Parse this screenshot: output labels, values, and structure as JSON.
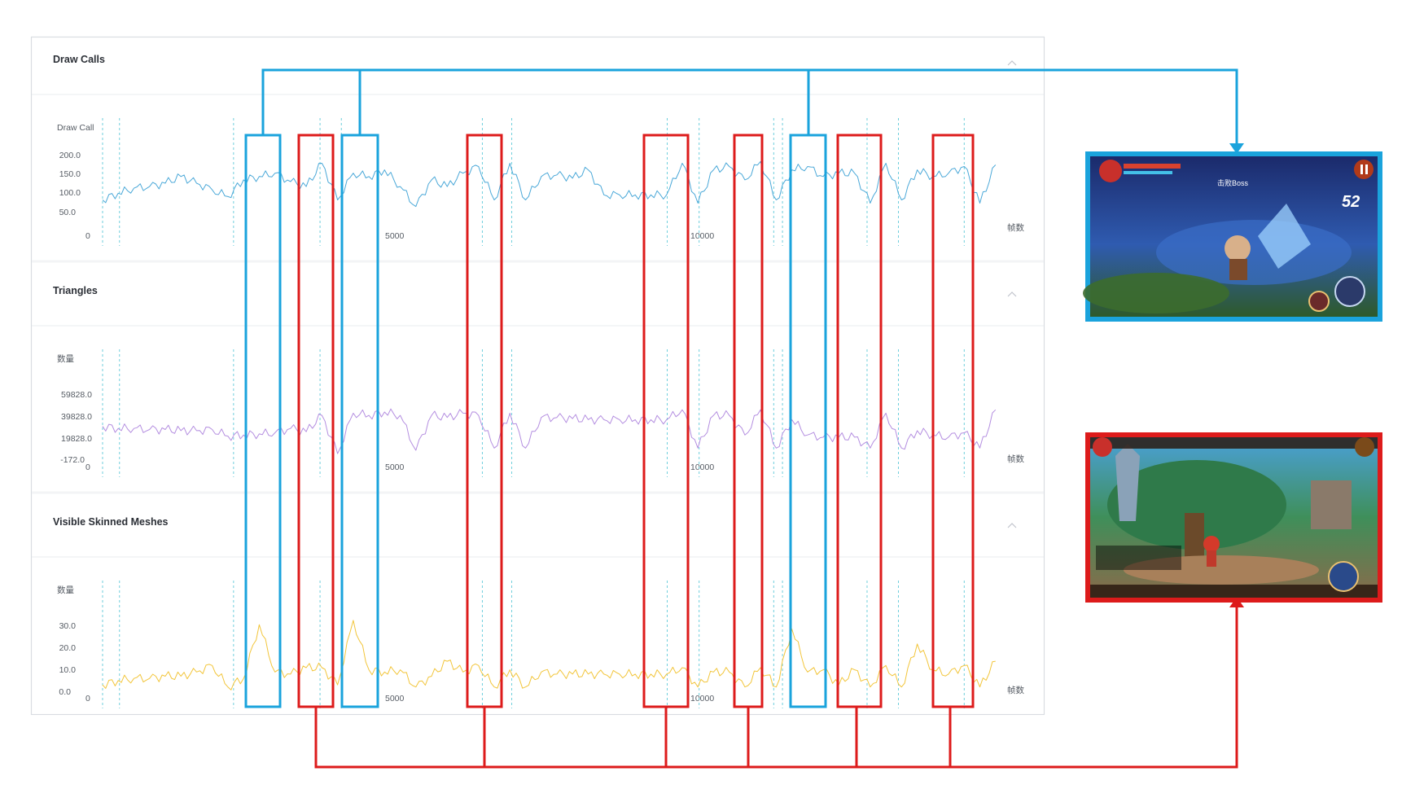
{
  "panels": [
    {
      "title": "Draw Calls",
      "y_axis_label": "Draw Call",
      "y_ticks": [
        "200.0",
        "150.0",
        "100.0",
        "50.0"
      ],
      "x_ticks": [
        "0",
        "5000",
        "10000"
      ],
      "x_unit": "帧数"
    },
    {
      "title": "Triangles",
      "y_axis_label": "数量",
      "y_ticks": [
        "59828.0",
        "39828.0",
        "19828.0",
        "-172.0"
      ],
      "x_ticks": [
        "0",
        "5000",
        "10000"
      ],
      "x_unit": "帧数"
    },
    {
      "title": "Visible Skinned Meshes",
      "y_axis_label": "数量",
      "y_ticks": [
        "30.0",
        "20.0",
        "10.0",
        "0.0"
      ],
      "x_ticks": [
        "0",
        "5000",
        "10000"
      ],
      "x_unit": "帧数"
    }
  ],
  "colors": {
    "draw_calls": "#4aa8d8",
    "triangles": "#b48ee0",
    "skinned": "#f2c53a",
    "marker": "#5fc9d8",
    "blue_highlight": "#1aa3dc",
    "red_highlight": "#dd1b1b"
  },
  "chart_data": [
    {
      "type": "line",
      "title": "Draw Calls",
      "ylabel": "Draw Call",
      "xlabel": "帧数",
      "xlim": [
        0,
        14500
      ],
      "ylim": [
        0,
        220
      ],
      "x": [
        0,
        250,
        500,
        750,
        1000,
        1250,
        1500,
        1750,
        2000,
        2250,
        2500,
        2750,
        3000,
        3250,
        3500,
        3750,
        4000,
        4250,
        4500,
        4750,
        5000,
        5250,
        5500,
        5750,
        6000,
        6250,
        6500,
        6750,
        7000,
        7250,
        7500,
        7750,
        8000,
        8250,
        8500,
        8750,
        9000,
        9250,
        9500,
        9750,
        10000,
        10250,
        10500,
        10750,
        11000,
        11250,
        11500,
        11750,
        12000,
        12250,
        12500,
        12750,
        13000,
        13250,
        13500,
        13750,
        14000,
        14250
      ],
      "series": [
        {
          "values": [
            60,
            80,
            95,
            100,
            110,
            130,
            110,
            90,
            70,
            120,
            130,
            140,
            115,
            100,
            170,
            60,
            140,
            130,
            150,
            100,
            40,
            120,
            100,
            140,
            160,
            60,
            170,
            60,
            130,
            135,
            125,
            150,
            75,
            75,
            75,
            75,
            75,
            170,
            50,
            150,
            160,
            120,
            175,
            60,
            150,
            160,
            130,
            140,
            140,
            50,
            170,
            60,
            150,
            130,
            140,
            160,
            50,
            165
          ]
        }
      ],
      "marker_frames": [
        0,
        270,
        2090,
        3470,
        3810,
        6060,
        6530,
        9010,
        9520,
        10710,
        10850,
        12200,
        12700,
        13750
      ]
    },
    {
      "type": "line",
      "title": "Triangles",
      "ylabel": "数量",
      "xlabel": "帧数",
      "xlim": [
        0,
        14500
      ],
      "ylim": [
        -172,
        69828
      ],
      "x": [
        0,
        250,
        500,
        750,
        1000,
        1250,
        1500,
        1750,
        2000,
        2250,
        2500,
        2750,
        3000,
        3250,
        3500,
        3750,
        4000,
        4250,
        4500,
        4750,
        5000,
        5250,
        5500,
        5750,
        6000,
        6250,
        6500,
        6750,
        7000,
        7250,
        7500,
        7750,
        8000,
        8250,
        8500,
        8750,
        9000,
        9250,
        9500,
        9750,
        10000,
        10250,
        10500,
        10750,
        11000,
        11250,
        11500,
        11750,
        12000,
        12250,
        12500,
        12750,
        13000,
        13250,
        13500,
        13750,
        14000,
        14250
      ],
      "series": [
        {
          "values": [
            30000,
            28000,
            28000,
            27000,
            27000,
            26000,
            26000,
            27000,
            21000,
            22000,
            23000,
            24000,
            28000,
            25000,
            40000,
            5000,
            42000,
            40000,
            43000,
            40000,
            8000,
            40000,
            38000,
            42000,
            40000,
            10000,
            42000,
            10000,
            38000,
            38000,
            37000,
            36000,
            36000,
            36000,
            36000,
            36000,
            36000,
            45000,
            10000,
            40000,
            40000,
            22000,
            45000,
            10000,
            36000,
            22000,
            20000,
            20000,
            20000,
            10000,
            42000,
            10000,
            26000,
            22000,
            20000,
            24000,
            10000,
            45000
          ]
        }
      ],
      "marker_frames": [
        0,
        270,
        2090,
        3470,
        3810,
        6060,
        6530,
        9010,
        9520,
        10710,
        10850,
        12200,
        12700,
        13750
      ]
    },
    {
      "type": "line",
      "title": "Visible Skinned Meshes",
      "ylabel": "数量",
      "xlabel": "帧数",
      "xlim": [
        0,
        14500
      ],
      "ylim": [
        0,
        36
      ],
      "x": [
        0,
        250,
        500,
        750,
        1000,
        1250,
        1500,
        1750,
        2000,
        2250,
        2500,
        2750,
        3000,
        3250,
        3500,
        3750,
        4000,
        4250,
        4500,
        4750,
        5000,
        5250,
        5500,
        5750,
        6000,
        6250,
        6500,
        6750,
        7000,
        7250,
        7500,
        7750,
        8000,
        8250,
        8500,
        8750,
        9000,
        9250,
        9500,
        9750,
        10000,
        10250,
        10500,
        10750,
        11000,
        11250,
        11500,
        11750,
        12000,
        12250,
        12500,
        12750,
        13000,
        13250,
        13500,
        13750,
        14000,
        14250
      ],
      "series": [
        {
          "values": [
            3,
            5,
            6,
            6,
            7,
            7,
            9,
            12,
            2,
            6,
            31,
            9,
            8,
            11,
            11,
            3,
            33,
            10,
            9,
            10,
            2,
            7,
            14,
            9,
            12,
            2,
            10,
            2,
            9,
            8,
            8,
            8,
            8,
            8,
            8,
            8,
            8,
            11,
            2,
            9,
            9,
            2,
            11,
            2,
            29,
            9,
            10,
            3,
            10,
            2,
            12,
            2,
            22,
            10,
            8,
            12,
            2,
            14
          ]
        }
      ],
      "marker_frames": [
        0,
        270,
        2090,
        3470,
        3810,
        6060,
        6530,
        9010,
        9520,
        10710,
        10850,
        12200,
        12700,
        13750
      ]
    }
  ],
  "thumbnails": {
    "top": {
      "hud_text": "击败Boss",
      "combo_text": "52"
    }
  }
}
